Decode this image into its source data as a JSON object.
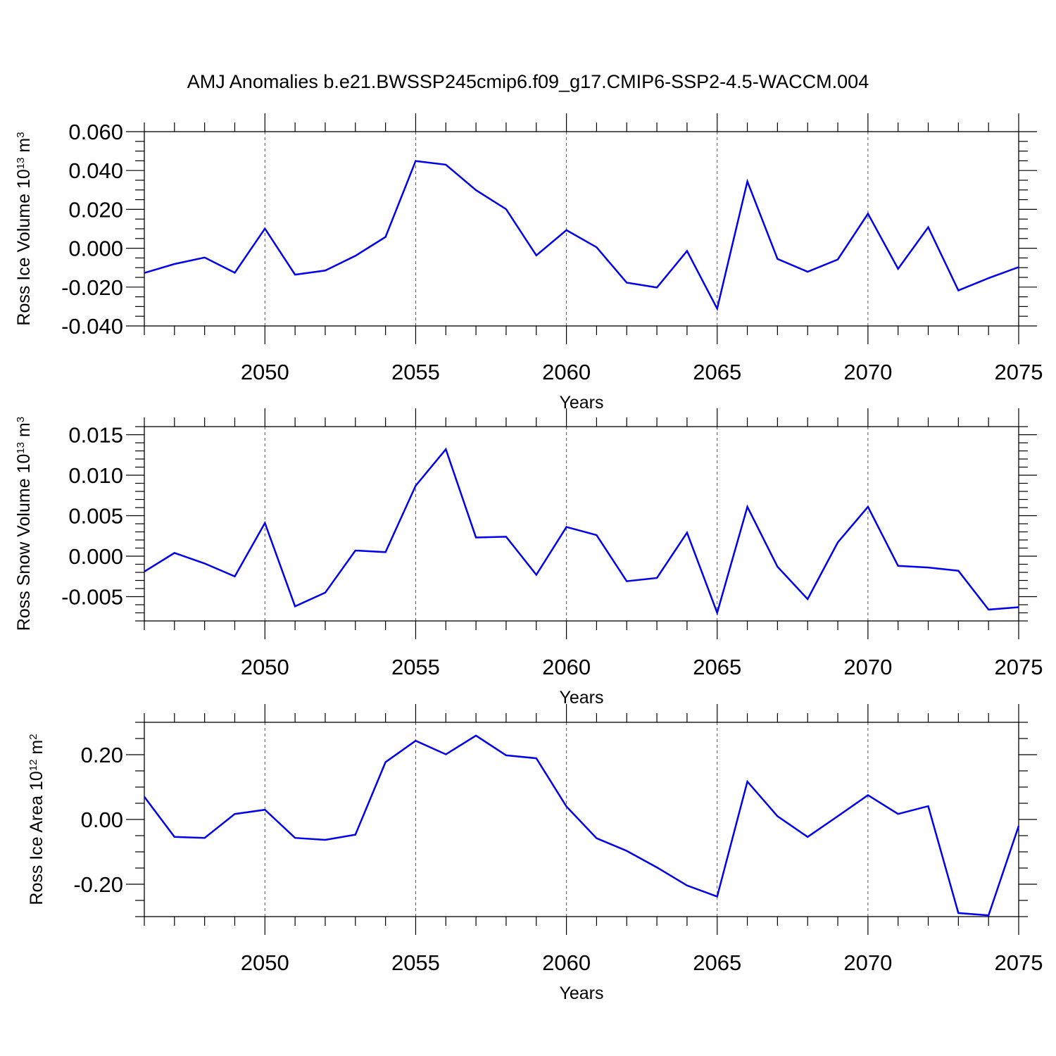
{
  "figure_title": "AMJ Anomalies b.e21.BWSSP245cmip6.f09_g17.CMIP6-SSP2-4.5-WACCM.004",
  "colors": {
    "line": "#0000ee",
    "grid": "#555555",
    "axis": "#000000"
  },
  "chart_data": [
    {
      "type": "line",
      "ylabel": {
        "base": "Ross Ice Volume 10",
        "exp": "13",
        "unit": " m",
        "unit_exp": "3"
      },
      "xlabel": "Years",
      "xlim": [
        2046,
        2075
      ],
      "ylim": [
        -0.04,
        0.06
      ],
      "x_tick_labels": [
        "2050",
        "2055",
        "2060",
        "2065",
        "2070",
        "2075"
      ],
      "x_major_ticks": [
        2050,
        2055,
        2060,
        2065,
        2070,
        2075
      ],
      "y_tick_labels": [
        "0.060",
        "0.040",
        "0.020",
        "0.000",
        "-0.020",
        "-0.040"
      ],
      "y_major_ticks": [
        0.06,
        0.04,
        0.02,
        0.0,
        -0.02,
        -0.04
      ],
      "y_minor_step": 0.005,
      "grid": "dashed vertical at major x ticks",
      "x": [
        2046,
        2047,
        2048,
        2049,
        2050,
        2051,
        2052,
        2053,
        2054,
        2055,
        2056,
        2057,
        2058,
        2059,
        2060,
        2061,
        2062,
        2063,
        2064,
        2065,
        2066,
        2067,
        2068,
        2069,
        2070,
        2071,
        2072,
        2073,
        2074,
        2075
      ],
      "series": [
        {
          "values": [
            -0.0127,
            -0.0081,
            -0.0048,
            -0.0126,
            0.0101,
            -0.0136,
            -0.0115,
            -0.0039,
            0.0058,
            0.0449,
            0.043,
            0.0299,
            0.0201,
            -0.0037,
            0.0093,
            0.0005,
            -0.0177,
            -0.0202,
            -0.0014,
            -0.0311,
            0.0344,
            -0.0055,
            -0.0121,
            -0.0058,
            0.0178,
            -0.0106,
            0.0108,
            -0.0217,
            -0.0154,
            -0.0097
          ]
        }
      ]
    },
    {
      "type": "line",
      "ylabel": {
        "base": "Ross Snow Volume 10",
        "exp": "13",
        "unit": " m",
        "unit_exp": "3"
      },
      "xlabel": "Years",
      "xlim": [
        2046,
        2075
      ],
      "ylim": [
        -0.008,
        0.016
      ],
      "x_tick_labels": [
        "2050",
        "2055",
        "2060",
        "2065",
        "2070",
        "2075"
      ],
      "x_major_ticks": [
        2050,
        2055,
        2060,
        2065,
        2070,
        2075
      ],
      "y_tick_labels": [
        "0.015",
        "0.010",
        "0.005",
        "0.000",
        "-0.005"
      ],
      "y_major_ticks": [
        0.015,
        0.01,
        0.005,
        0.0,
        -0.005
      ],
      "y_minor_step": 0.001,
      "grid": "dashed vertical at major x ticks",
      "x": [
        2046,
        2047,
        2048,
        2049,
        2050,
        2051,
        2052,
        2053,
        2054,
        2055,
        2056,
        2057,
        2058,
        2059,
        2060,
        2061,
        2062,
        2063,
        2064,
        2065,
        2066,
        2067,
        2068,
        2069,
        2070,
        2071,
        2072,
        2073,
        2074,
        2075
      ],
      "series": [
        {
          "values": [
            -0.0019,
            0.0004,
            -0.0009,
            -0.0025,
            0.0041,
            -0.0062,
            -0.0045,
            0.0007,
            0.0005,
            0.0087,
            0.0132,
            0.0023,
            0.0024,
            -0.0023,
            0.0036,
            0.0026,
            -0.0031,
            -0.0027,
            0.0029,
            -0.007,
            0.0061,
            -0.0013,
            -0.0053,
            0.0017,
            0.0061,
            -0.0012,
            -0.0014,
            -0.0018,
            -0.0066,
            -0.0063
          ]
        }
      ]
    },
    {
      "type": "line",
      "ylabel": {
        "base": "Ross Ice Area 10",
        "exp": "12",
        "unit": " m",
        "unit_exp": "2"
      },
      "xlabel": "Years",
      "xlim": [
        2046,
        2075
      ],
      "ylim": [
        -0.3,
        0.3
      ],
      "x_tick_labels": [
        "2050",
        "2055",
        "2060",
        "2065",
        "2070",
        "2075"
      ],
      "x_major_ticks": [
        2050,
        2055,
        2060,
        2065,
        2070,
        2075
      ],
      "y_tick_labels": [
        "0.20",
        "0.00",
        "-0.20"
      ],
      "y_major_ticks": [
        0.2,
        0.0,
        -0.2
      ],
      "y_minor_step": 0.05,
      "grid": "dashed vertical at major x ticks",
      "x": [
        2046,
        2047,
        2048,
        2049,
        2050,
        2051,
        2052,
        2053,
        2054,
        2055,
        2056,
        2057,
        2058,
        2059,
        2060,
        2061,
        2062,
        2063,
        2064,
        2065,
        2066,
        2067,
        2068,
        2069,
        2070,
        2071,
        2072,
        2073,
        2074,
        2075
      ],
      "series": [
        {
          "values": [
            0.07,
            -0.054,
            -0.057,
            0.017,
            0.03,
            -0.057,
            -0.063,
            -0.047,
            0.177,
            0.243,
            0.201,
            0.259,
            0.198,
            0.189,
            0.04,
            -0.058,
            -0.097,
            -0.148,
            -0.204,
            -0.238,
            0.117,
            0.01,
            -0.054,
            0.01,
            0.075,
            0.017,
            0.041,
            -0.289,
            -0.296,
            -0.02
          ]
        }
      ]
    }
  ]
}
